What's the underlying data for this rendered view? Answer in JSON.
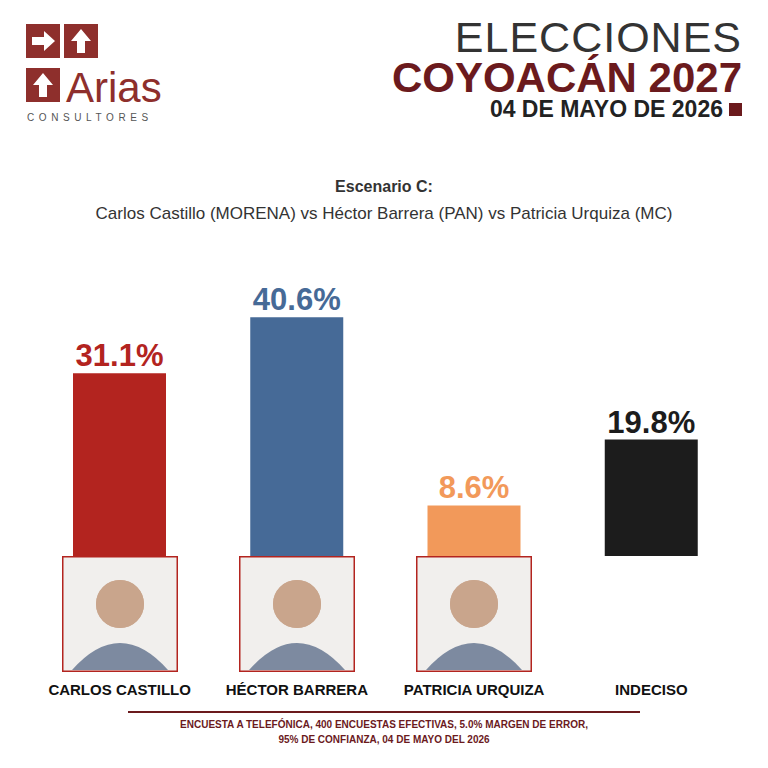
{
  "chart_data": {
    "type": "bar",
    "brand": "Arias",
    "brand_subtitle": "CONSULTORES",
    "supertitle": "ELECCIONES",
    "title": "COYOACÁN 2027",
    "date": "04 DE MAYO DE 2026",
    "scenario": "Escenario C:",
    "subtitle": "Carlos Castillo (MORENA) vs Héctor Barrera (PAN) vs Patricia Urquiza (MC)",
    "categories": [
      "CARLOS CASTILLO",
      "HÉCTOR BARRERA",
      "PATRICIA URQUIZA",
      "INDECISO"
    ],
    "values": [
      31.1,
      40.6,
      8.6,
      19.8
    ],
    "value_labels": [
      "31.1%",
      "40.6%",
      "8.6%",
      "19.8%"
    ],
    "colors": [
      "#b3241f",
      "#466a97",
      "#f2995a",
      "#1c1c1c"
    ],
    "ylim": [
      0,
      50
    ],
    "grid": false,
    "data_labels": true,
    "tick_labels": false,
    "footer": [
      "ENCUESTA A TELEFÓNICA, 400 ENCUESTAS EFECTIVAS, 5.0% MARGEN DE ERROR,",
      "95% DE CONFIANZA, 04 DE MAYO DEL 2026"
    ]
  }
}
